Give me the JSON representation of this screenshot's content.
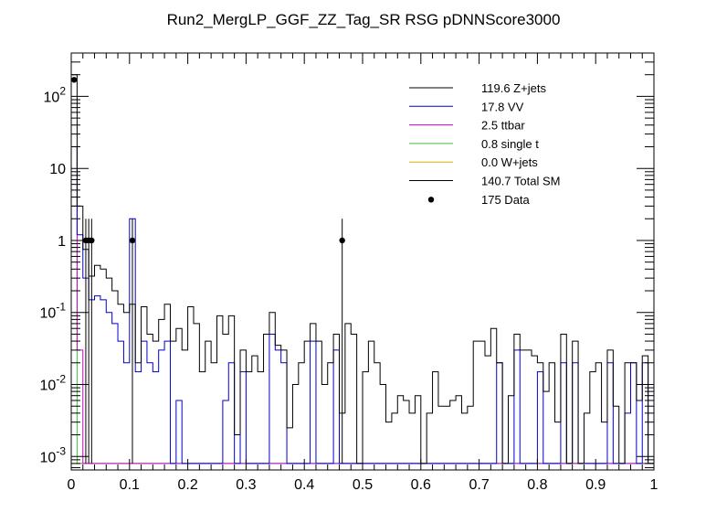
{
  "chart_data": {
    "type": "histogram",
    "title": "Run2_MergLP_GGF_ZZ_Tag_SR RSG  pDNNScore3000",
    "xlabel": "",
    "ylabel": "",
    "xlim": [
      0,
      1
    ],
    "ylim": [
      0.00065,
      400
    ],
    "yscale": "log",
    "x_ticks": [
      "0",
      "0.1",
      "0.2",
      "0.3",
      "0.4",
      "0.5",
      "0.6",
      "0.7",
      "0.8",
      "0.9",
      "1"
    ],
    "y_ticks": [
      {
        "value": 0.001,
        "label": "10",
        "exp": "-3"
      },
      {
        "value": 0.01,
        "label": "10",
        "exp": "-2"
      },
      {
        "value": 0.1,
        "label": "10",
        "exp": "-1"
      },
      {
        "value": 1,
        "label": "1",
        "exp": ""
      },
      {
        "value": 10,
        "label": "10",
        "exp": ""
      },
      {
        "value": 100,
        "label": "10",
        "exp": "2"
      }
    ],
    "bin_width": 0.01,
    "legend_position": "top-right",
    "legend": [
      {
        "label": "119.6 Z+jets",
        "color": "#000000",
        "style": "line"
      },
      {
        "label": "17.8 VV",
        "color": "#0000cc",
        "style": "line"
      },
      {
        "label": "2.5 ttbar",
        "color": "#cc00cc",
        "style": "line"
      },
      {
        "label": "0.8 single t",
        "color": "#44bb44",
        "style": "line"
      },
      {
        "label": "0.0 W+jets",
        "color": "#ddaa00",
        "style": "line"
      },
      {
        "label": "140.7 Total SM",
        "color": "#000000",
        "style": "line"
      },
      {
        "label": "175 Data",
        "color": "#000000",
        "style": "marker"
      }
    ],
    "series": [
      {
        "name": "Total SM",
        "color": "#000000",
        "values": [
          200,
          3.0,
          0.75,
          0.32,
          0.45,
          0.4,
          0.3,
          0.2,
          0.13,
          0.1,
          0.13,
          0.02,
          0.12,
          0.05,
          0.04,
          0.08,
          0.13,
          0.04,
          0.06,
          0.03,
          0.12,
          0.07,
          0.015,
          0.04,
          0.02,
          0.09,
          0.05,
          0.09,
          0.002,
          0.03,
          0.015,
          0.025,
          0.015,
          0.05,
          0.1,
          0.035,
          0.03,
          0.0025,
          0.01,
          0.02,
          0.04,
          0.07,
          0.04,
          0.01,
          0.02,
          0.05,
          0.004,
          0.07,
          0.05,
          0.0008,
          0.015,
          0.04,
          0.02,
          0.01,
          0.003,
          0.004,
          0.007,
          0.006,
          0.004,
          0.007,
          0.0008,
          0.004,
          0.015,
          0.005,
          0.005,
          0.006,
          0.007,
          0.004,
          0.005,
          0.04,
          0.04,
          0.025,
          0.06,
          0.02,
          0.0008,
          0.007,
          0.05,
          0.03,
          0.03,
          0.025,
          0.02,
          0.008,
          0.02,
          0.003,
          0.05,
          0.0008,
          0.04,
          0.0008,
          0.004,
          0.015,
          0.02,
          0.003,
          0.03,
          0.005,
          0.0008,
          0.02,
          0.02,
          0.006,
          0.025,
          0.0008
        ]
      },
      {
        "name": "VV",
        "color": "#0000cc",
        "values": [
          20,
          1.2,
          0.3,
          0.15,
          0.17,
          0.15,
          0.1,
          0.07,
          0.04,
          0.02,
          2.0,
          0.015,
          0.04,
          0.02,
          0.015,
          0.03,
          0.04,
          0.0008,
          0.006,
          0.0008,
          0.0008,
          0.0008,
          0.0008,
          0.0008,
          0.0008,
          0.0008,
          0.006,
          0.02,
          0.0008,
          0.015,
          0.0008,
          0.0008,
          0.0008,
          0.0008,
          0.05,
          0.03,
          0.02,
          0.0008,
          0.0008,
          0.0008,
          0.0008,
          0.04,
          0.0008,
          0.0008,
          0.0008,
          0.03,
          0.0008,
          0.0008,
          0.0008,
          0.0008,
          0.0008,
          0.0008,
          0.0008,
          0.0008,
          0.0008,
          0.0008,
          0.0008,
          0.0008,
          0.0008,
          0.0008,
          0.0008,
          0.0008,
          0.0008,
          0.0008,
          0.0008,
          0.0008,
          0.0008,
          0.0008,
          0.0008,
          0.0008,
          0.0008,
          0.0008,
          0.0008,
          0.02,
          0.0008,
          0.0008,
          0.03,
          0.0008,
          0.0008,
          0.0008,
          0.015,
          0.0008,
          0.0008,
          0.0008,
          0.02,
          0.0008,
          0.02,
          0.0008,
          0.0008,
          0.0008,
          0.0008,
          0.0008,
          0.02,
          0.0008,
          0.0008,
          0.004,
          0.02,
          0.0008,
          0.02,
          0.0008
        ]
      },
      {
        "name": "ttbar",
        "color": "#cc00cc",
        "values": [
          3.0,
          0.03,
          0.0008,
          0.0008,
          0.0008,
          0.0008,
          0.0008,
          0.0008,
          0.0008,
          0.0008,
          0.0008,
          0.0008,
          0.0008,
          0.0008,
          0.0008,
          0.0008,
          0.0008,
          0.0008,
          0.0008,
          0.0008,
          0.0008,
          0.0008,
          0.0008,
          0.0008,
          0.0008,
          0.0008,
          0.0008,
          0.0008,
          0.0008,
          0.0008,
          0.0008,
          0.0008,
          0.0008,
          0.0008,
          0.0008,
          0.0008,
          0.0008,
          0.0008,
          0.0008,
          0.0008,
          0.0008,
          0.0008,
          0.0008,
          0.0008,
          0.0008,
          0.0008,
          0.0008,
          0.0008,
          0.0008,
          0.0008,
          0.0008,
          0.0008,
          0.0008,
          0.0008,
          0.0008,
          0.0008,
          0.0008,
          0.0008,
          0.0008,
          0.0008,
          0.0008,
          0.0008,
          0.0008,
          0.0008,
          0.0008,
          0.0008,
          0.0008,
          0.0008,
          0.0008,
          0.0008,
          0.0008,
          0.0008,
          0.0008,
          0.0008,
          0.0008,
          0.0008,
          0.0008,
          0.0008,
          0.0008,
          0.0008,
          0.0008,
          0.0008,
          0.0008,
          0.0008,
          0.0008,
          0.0008,
          0.0008,
          0.0008,
          0.0008,
          0.0008,
          0.0008,
          0.0008,
          0.0008,
          0.0008,
          0.0008,
          0.0008,
          0.0008,
          0.0008,
          0.0008,
          0.0008
        ]
      },
      {
        "name": "single t",
        "color": "#44bb44",
        "values": [
          0.8,
          0.0008,
          0.0008,
          0.0008,
          0.0008,
          0.0008,
          0.0008,
          0.0008,
          0.0008,
          0.0008,
          0.0008,
          0.0008,
          0.0008,
          0.0008,
          0.0008,
          0.0008,
          0.0008,
          0.0008,
          0.0008,
          0.0008,
          0.0008,
          0.0008,
          0.0008,
          0.0008,
          0.0008,
          0.0008,
          0.0008,
          0.0008,
          0.0008,
          0.0008,
          0.0008,
          0.0008,
          0.0008,
          0.0008,
          0.0008,
          0.0008,
          0.0008,
          0.0008,
          0.0008,
          0.0008,
          0.0008,
          0.0008,
          0.0008,
          0.0008,
          0.0008,
          0.0008,
          0.0008,
          0.0008,
          0.0008,
          0.0008,
          0.0008,
          0.0008,
          0.0008,
          0.0008,
          0.0008,
          0.0008,
          0.0008,
          0.0008,
          0.0008,
          0.0008,
          0.0008,
          0.0008,
          0.0008,
          0.0008,
          0.0008,
          0.0008,
          0.0008,
          0.0008,
          0.0008,
          0.0008,
          0.0008,
          0.0008,
          0.0008,
          0.0008,
          0.0008,
          0.0008,
          0.0008,
          0.0008,
          0.0008,
          0.0008,
          0.0008,
          0.0008,
          0.0008,
          0.0008,
          0.0008,
          0.0008,
          0.0008,
          0.0008,
          0.0008,
          0.0008,
          0.0008,
          0.0008,
          0.0008,
          0.0008,
          0.0008,
          0.0008,
          0.0008,
          0.0008,
          0.0008,
          0.0008
        ]
      },
      {
        "name": "W+jets",
        "color": "#ddaa00",
        "values": [
          0.0008,
          0.0008,
          0.0008,
          0.0008,
          0.0008,
          0.0008,
          0.0008,
          0.0008,
          0.0008,
          0.0008,
          0.0008,
          0.0008,
          0.0008,
          0.0008,
          0.0008,
          0.0008,
          0.0008,
          0.0008,
          0.0008,
          0.0008,
          0.0008,
          0.0008,
          0.0008,
          0.0008,
          0.0008,
          0.0008,
          0.0008,
          0.0008,
          0.0008,
          0.0008,
          0.0008,
          0.0008,
          0.0008,
          0.0008,
          0.0008,
          0.0008,
          0.0008,
          0.0008,
          0.0008,
          0.0008,
          0.0008,
          0.0008,
          0.0008,
          0.0008,
          0.0008,
          0.0008,
          0.0008,
          0.0008,
          0.0008,
          0.0008,
          0.0008,
          0.0008,
          0.0008,
          0.0008,
          0.0008,
          0.0008,
          0.0008,
          0.0008,
          0.0008,
          0.0008,
          0.0008,
          0.0008,
          0.0008,
          0.0008,
          0.0008,
          0.0008,
          0.0008,
          0.0008,
          0.0008,
          0.0008,
          0.0008,
          0.0008,
          0.0008,
          0.0008,
          0.0008,
          0.0008,
          0.0008,
          0.0008,
          0.0008,
          0.0008,
          0.0008,
          0.0008,
          0.0008,
          0.0008,
          0.0008,
          0.0008,
          0.0008,
          0.0008,
          0.0008,
          0.0008,
          0.0008,
          0.0008,
          0.0008,
          0.0008,
          0.0008,
          0.0008,
          0.0008,
          0.0008,
          0.0008,
          0.0008
        ]
      }
    ],
    "data_points": [
      {
        "x": 0.005,
        "y": 170,
        "yerr_up": 184,
        "yerr_down": 157
      },
      {
        "x": 0.025,
        "y": 1,
        "yerr_up": 2,
        "yerr_down": 0.0008
      },
      {
        "x": 0.03,
        "y": 1,
        "yerr_up": 2,
        "yerr_down": 0.0008
      },
      {
        "x": 0.035,
        "y": 1,
        "yerr_up": 2,
        "yerr_down": 0.0008
      },
      {
        "x": 0.105,
        "y": 1,
        "yerr_up": 2,
        "yerr_down": 0.0008
      },
      {
        "x": 0.465,
        "y": 1,
        "yerr_up": 2,
        "yerr_down": 0.0008
      }
    ]
  }
}
